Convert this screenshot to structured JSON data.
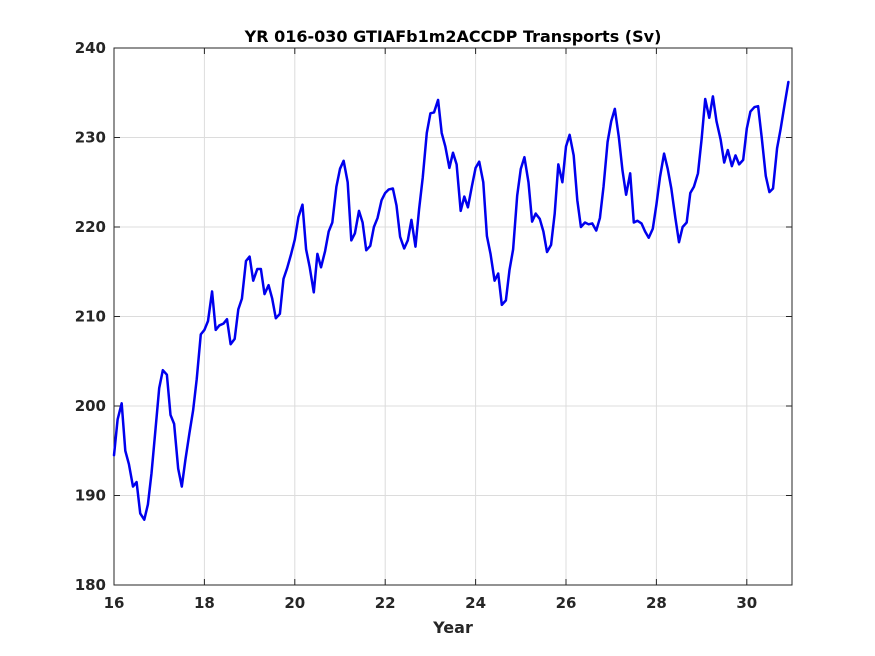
{
  "chart_data": {
    "type": "line",
    "title": "YR 016-030 GTIAFb1m2ACCDP Transports (Sv)",
    "xlabel": "Year",
    "ylabel": "",
    "xlim": [
      16,
      31
    ],
    "ylim": [
      180,
      240
    ],
    "xticks": [
      16,
      18,
      20,
      22,
      24,
      26,
      28,
      30
    ],
    "yticks": [
      180,
      190,
      200,
      210,
      220,
      230,
      240
    ],
    "grid": true,
    "series": [
      {
        "color": "#0000ee",
        "x": [
          16.0,
          16.08,
          16.17,
          16.25,
          16.33,
          16.42,
          16.5,
          16.58,
          16.67,
          16.75,
          16.83,
          16.92,
          17.0,
          17.08,
          17.17,
          17.25,
          17.33,
          17.42,
          17.5,
          17.58,
          17.67,
          17.75,
          17.83,
          17.92,
          18.0,
          18.08,
          18.17,
          18.25,
          18.33,
          18.42,
          18.5,
          18.58,
          18.67,
          18.75,
          18.83,
          18.92,
          19.0,
          19.08,
          19.17,
          19.25,
          19.33,
          19.42,
          19.5,
          19.58,
          19.67,
          19.75,
          19.83,
          19.92,
          20.0,
          20.08,
          20.17,
          20.25,
          20.33,
          20.42,
          20.5,
          20.58,
          20.67,
          20.75,
          20.83,
          20.92,
          21.0,
          21.08,
          21.17,
          21.25,
          21.33,
          21.42,
          21.5,
          21.58,
          21.67,
          21.75,
          21.83,
          21.92,
          22.0,
          22.08,
          22.17,
          22.25,
          22.33,
          22.42,
          22.5,
          22.58,
          22.67,
          22.75,
          22.83,
          22.92,
          23.0,
          23.08,
          23.17,
          23.25,
          23.33,
          23.42,
          23.5,
          23.58,
          23.67,
          23.75,
          23.83,
          23.92,
          24.0,
          24.08,
          24.17,
          24.25,
          24.33,
          24.42,
          24.5,
          24.58,
          24.67,
          24.75,
          24.83,
          24.92,
          25.0,
          25.08,
          25.17,
          25.25,
          25.33,
          25.42,
          25.5,
          25.58,
          25.67,
          25.75,
          25.83,
          25.92,
          26.0,
          26.08,
          26.17,
          26.25,
          26.33,
          26.42,
          26.5,
          26.58,
          26.67,
          26.75,
          26.83,
          26.92,
          27.0,
          27.08,
          27.17,
          27.25,
          27.33,
          27.42,
          27.5,
          27.58,
          27.67,
          27.75,
          27.83,
          27.92,
          28.0,
          28.08,
          28.17,
          28.25,
          28.33,
          28.42,
          28.5,
          28.58,
          28.67,
          28.75,
          28.83,
          28.92,
          29.0,
          29.08,
          29.17,
          29.25,
          29.33,
          29.42,
          29.5,
          29.58,
          29.67,
          29.75,
          29.83,
          29.92,
          30.0,
          30.08,
          30.17,
          30.25,
          30.33,
          30.42,
          30.5,
          30.58,
          30.67,
          30.75,
          30.83,
          30.92
        ],
        "values": [
          194.5,
          198.5,
          200.3,
          195.0,
          193.5,
          191.0,
          191.5,
          188.0,
          187.3,
          189.0,
          192.5,
          197.5,
          202.0,
          204.0,
          203.5,
          199.0,
          198.0,
          193.0,
          191.0,
          194.0,
          197.0,
          199.5,
          203.0,
          208.0,
          208.5,
          209.5,
          212.8,
          208.5,
          209.0,
          209.2,
          209.7,
          206.9,
          207.5,
          210.8,
          212.0,
          216.2,
          216.7,
          214.0,
          215.3,
          215.3,
          212.5,
          213.5,
          212.0,
          209.8,
          210.3,
          214.2,
          215.4,
          217.0,
          218.6,
          221.1,
          222.5,
          217.5,
          215.5,
          212.7,
          217.0,
          215.5,
          217.3,
          219.5,
          220.5,
          224.5,
          226.5,
          227.4,
          225.0,
          218.5,
          219.3,
          221.8,
          220.5,
          217.4,
          217.9,
          220.0,
          221.0,
          223.0,
          223.8,
          224.2,
          224.3,
          222.4,
          218.9,
          217.6,
          218.5,
          220.8,
          217.8,
          222.0,
          225.5,
          230.5,
          232.7,
          232.8,
          234.2,
          230.5,
          229.0,
          226.6,
          228.3,
          227.0,
          221.8,
          223.4,
          222.2,
          224.6,
          226.6,
          227.3,
          225.0,
          219.0,
          217.0,
          214.0,
          214.8,
          211.3,
          211.8,
          215.2,
          217.5,
          223.5,
          226.5,
          227.8,
          225.0,
          220.6,
          221.5,
          220.9,
          219.5,
          217.2,
          218.0,
          221.5,
          227.0,
          225.0,
          229.0,
          230.3,
          228.0,
          223.0,
          220.0,
          220.5,
          220.3,
          220.4,
          219.6,
          221.0,
          224.5,
          229.5,
          231.8,
          233.2,
          230.0,
          226.3,
          223.6,
          226.0,
          220.5,
          220.7,
          220.4,
          219.5,
          218.8,
          219.8,
          222.5,
          225.6,
          228.2,
          226.5,
          224.3,
          221.0,
          218.3,
          220.0,
          220.5,
          223.8,
          224.5,
          226.0,
          229.8,
          234.3,
          232.2,
          234.6,
          231.8,
          229.8,
          227.2,
          228.6,
          226.8,
          228.0,
          227.0,
          227.5,
          231.0,
          232.9,
          233.4,
          233.5,
          230.0,
          225.7,
          223.9,
          224.3,
          228.8,
          231.0,
          233.5,
          236.2
        ]
      }
    ]
  }
}
